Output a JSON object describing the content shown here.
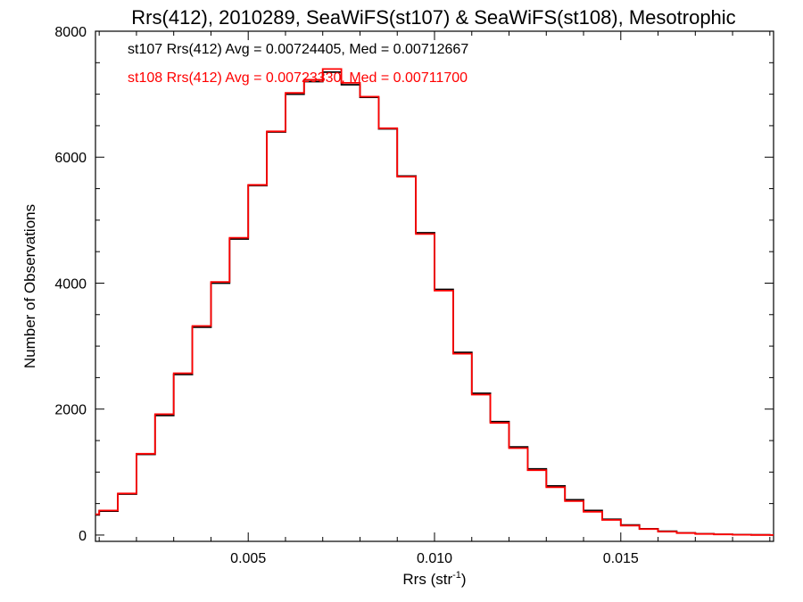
{
  "chart_data": {
    "type": "line",
    "step": true,
    "title": "Rrs(412), 2010289, SeaWiFS(st107) & SeaWiFS(st108), Mesotrophic",
    "xlabel": "Rrs (str",
    "xlabel_sup": "-1",
    "xlabel_tail": ")",
    "ylabel": "Number of Observations",
    "xlim": [
      0.0009,
      0.0191
    ],
    "ylim": [
      -100,
      8000
    ],
    "x_ticks": [
      0.005,
      0.01,
      0.015
    ],
    "x_tick_labels": [
      "0.005",
      "0.010",
      "0.015"
    ],
    "y_ticks": [
      0,
      2000,
      4000,
      6000,
      8000
    ],
    "y_tick_labels": [
      "0",
      "2000",
      "4000",
      "6000",
      "8000"
    ],
    "grid": false,
    "series": [
      {
        "name": "st107",
        "color": "#000000",
        "x": [
          0.0009,
          0.001,
          0.0015,
          0.002,
          0.0025,
          0.003,
          0.0035,
          0.004,
          0.0045,
          0.005,
          0.0055,
          0.006,
          0.0065,
          0.007,
          0.0075,
          0.008,
          0.0085,
          0.009,
          0.0095,
          0.01,
          0.0105,
          0.011,
          0.0115,
          0.012,
          0.0125,
          0.013,
          0.0135,
          0.014,
          0.0145,
          0.015,
          0.0155,
          0.016,
          0.0165,
          0.017,
          0.0175,
          0.018,
          0.0185,
          0.019
        ],
        "y": [
          320,
          380,
          650,
          1280,
          1900,
          2550,
          3300,
          4000,
          4700,
          5550,
          6400,
          7000,
          7200,
          7350,
          7150,
          6950,
          6450,
          5700,
          4800,
          3900,
          2900,
          2250,
          1800,
          1400,
          1050,
          780,
          560,
          390,
          250,
          160,
          100,
          60,
          35,
          20,
          12,
          6,
          3,
          1
        ]
      },
      {
        "name": "st108",
        "color": "#ff0000",
        "x": [
          0.0009,
          0.001,
          0.0015,
          0.002,
          0.0025,
          0.003,
          0.0035,
          0.004,
          0.0045,
          0.005,
          0.0055,
          0.006,
          0.0065,
          0.007,
          0.0075,
          0.008,
          0.0085,
          0.009,
          0.0095,
          0.01,
          0.0105,
          0.011,
          0.0115,
          0.012,
          0.0125,
          0.013,
          0.0135,
          0.014,
          0.0145,
          0.015,
          0.0155,
          0.016,
          0.0165,
          0.017,
          0.0175,
          0.018,
          0.0185,
          0.019
        ],
        "y": [
          330,
          390,
          660,
          1290,
          1920,
          2570,
          3320,
          4020,
          4720,
          5560,
          6410,
          7020,
          7230,
          7400,
          7180,
          6960,
          6460,
          5690,
          4780,
          3880,
          2880,
          2230,
          1780,
          1380,
          1030,
          760,
          540,
          370,
          240,
          150,
          95,
          55,
          32,
          18,
          10,
          5,
          2,
          1
        ]
      }
    ],
    "legend": [
      {
        "text": "st107 Rrs(412) Avg = 0.00724405, Med = 0.00712667",
        "color": "#000000"
      },
      {
        "text": "st108 Rrs(412) Avg = 0.00723330, Med = 0.00711700",
        "color": "#ff0000"
      }
    ],
    "legend_placement": "top-left"
  }
}
